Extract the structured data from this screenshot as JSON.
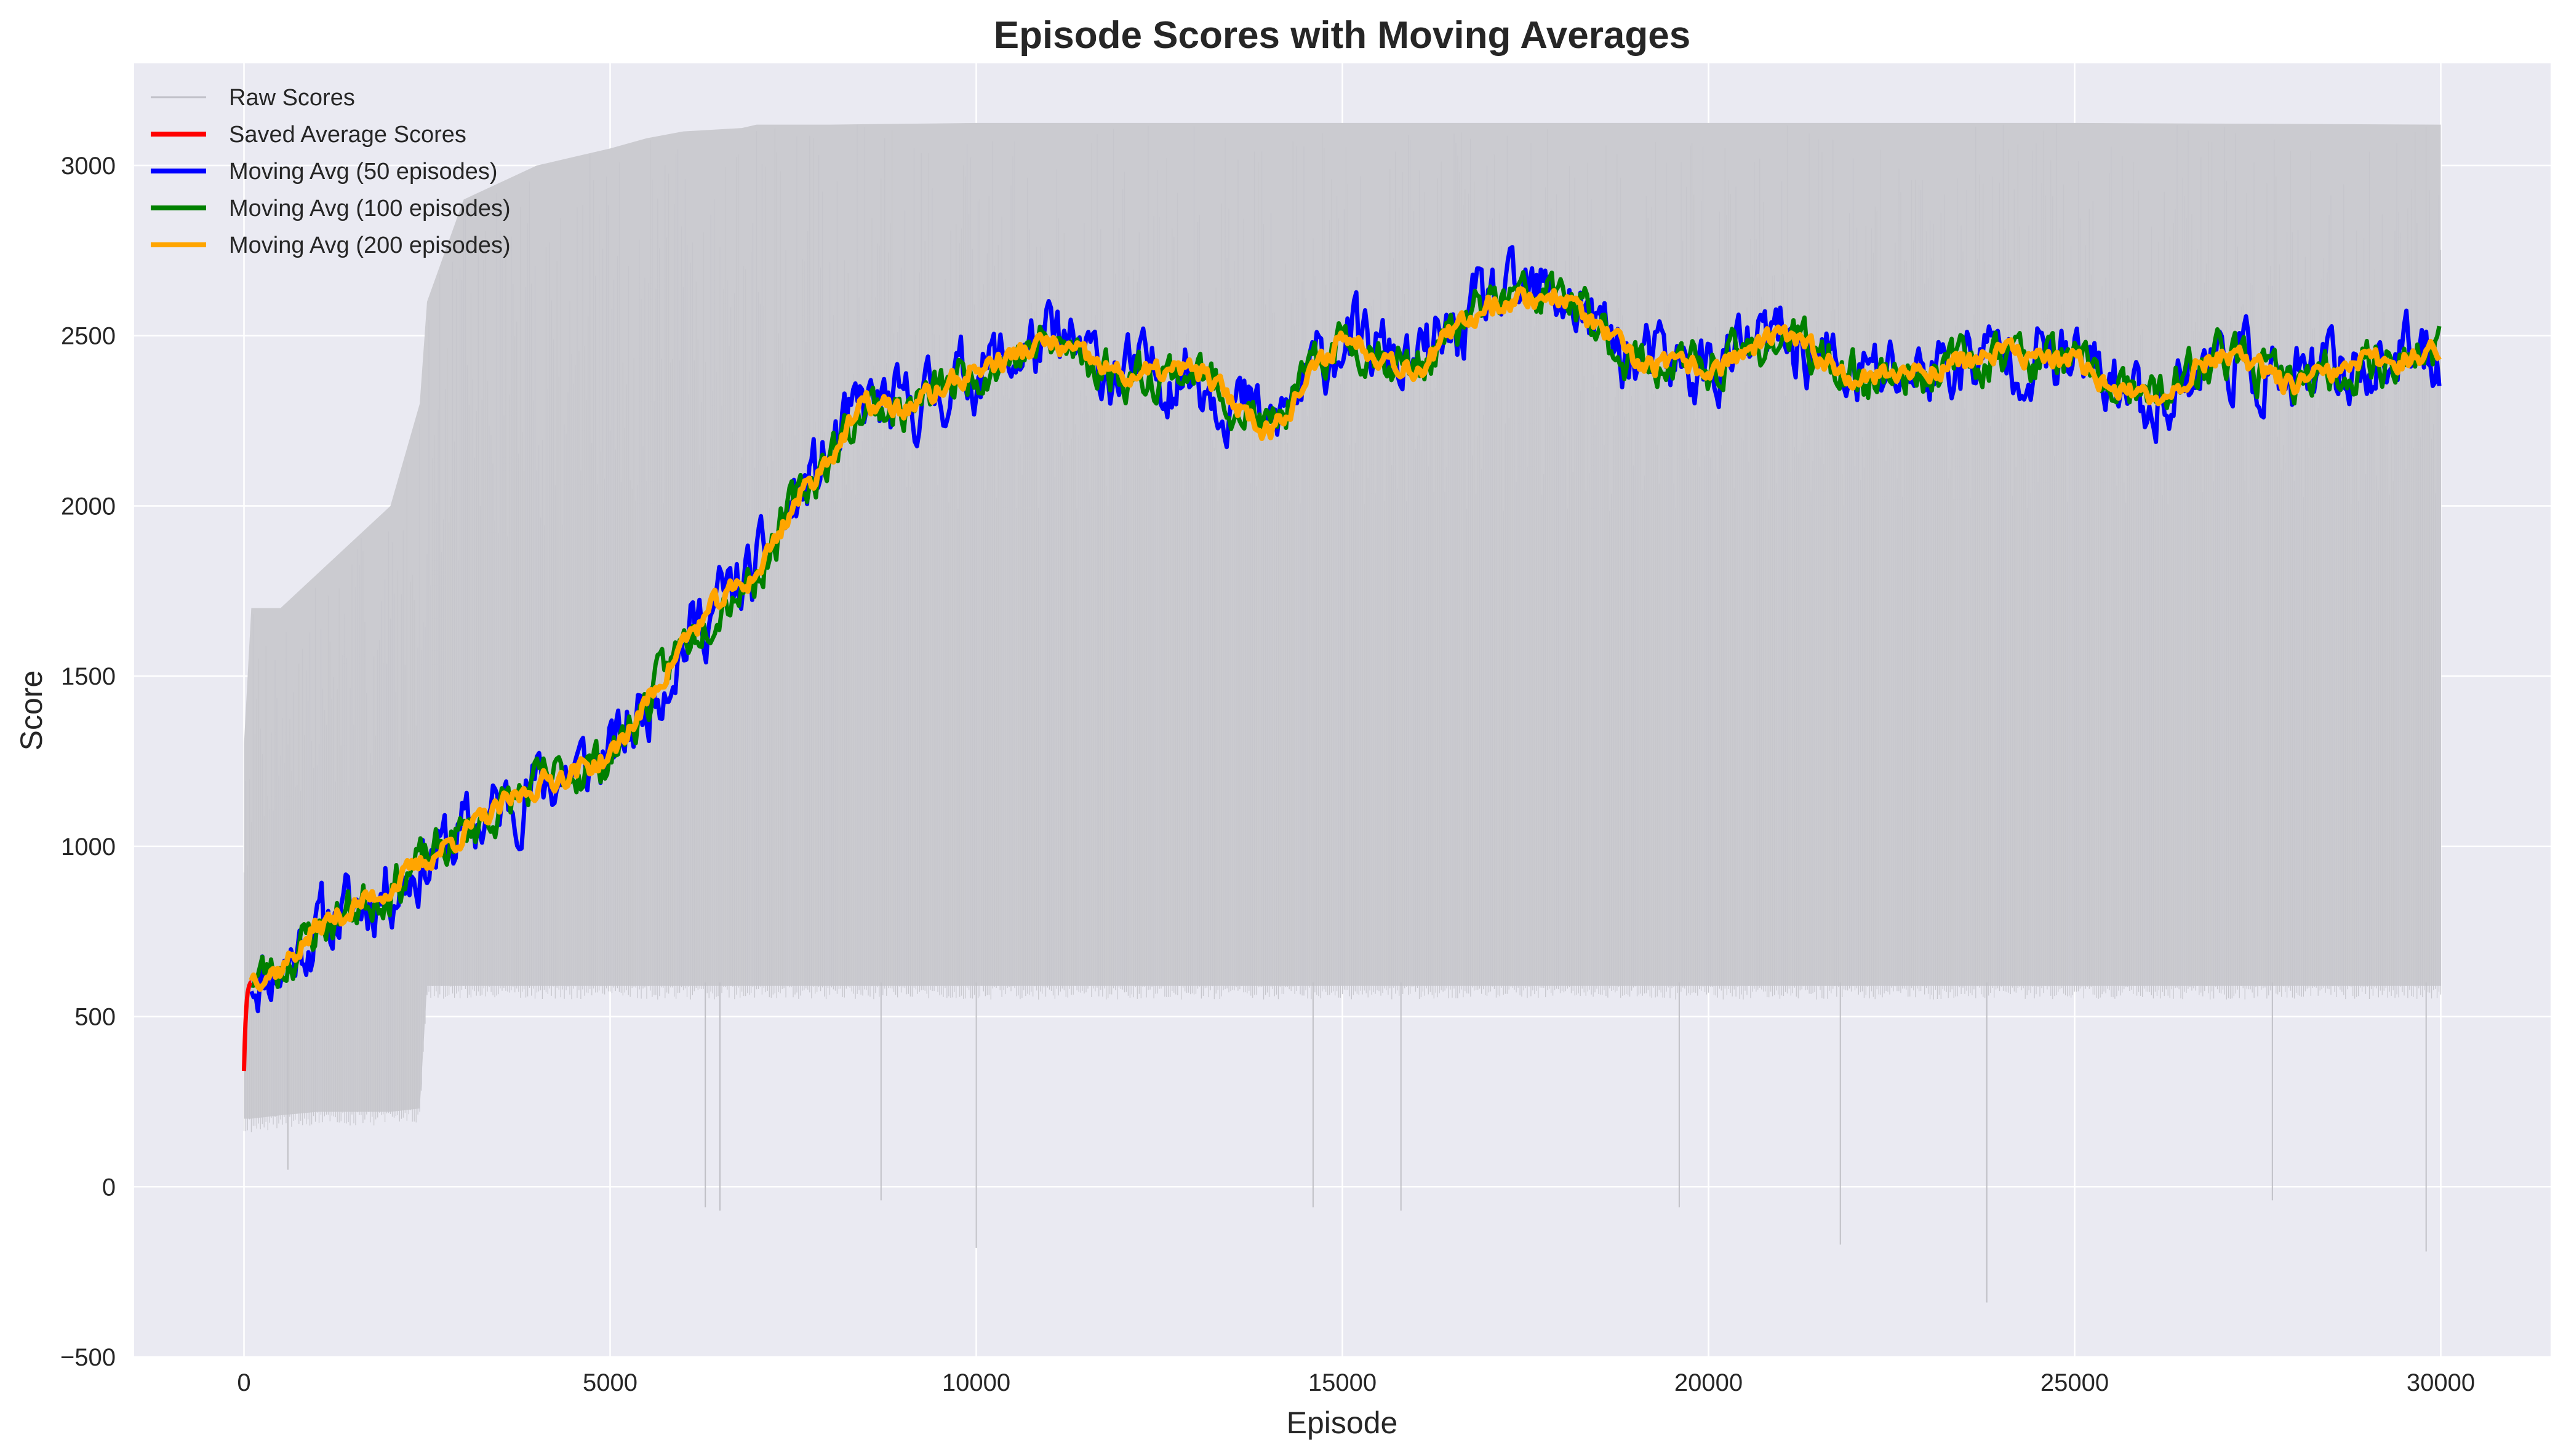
{
  "chart_data": {
    "type": "line",
    "title": "Episode Scores with Moving Averages",
    "xlabel": "Episode",
    "ylabel": "Score",
    "xlim": [
      -1500,
      31500
    ],
    "ylim": [
      -500,
      3300
    ],
    "xticks": [
      0,
      5000,
      10000,
      15000,
      20000,
      25000,
      30000
    ],
    "yticks": [
      -500,
      0,
      500,
      1000,
      1500,
      2000,
      2500,
      3000
    ],
    "xtick_labels": [
      "0",
      "5000",
      "10000",
      "15000",
      "20000",
      "25000",
      "30000"
    ],
    "ytick_labels": [
      "−500",
      "0",
      "500",
      "1000",
      "1500",
      "2000",
      "2500",
      "3000"
    ],
    "grid": true,
    "legend_position": "top-left",
    "colors": {
      "background": "#eaeaf2",
      "grid": "#ffffff",
      "raw": "#c0c0c8",
      "saved": "#ff0000",
      "ma50": "#0000ff",
      "ma100": "#008000",
      "ma200": "#ffa500"
    },
    "raw_scores": {
      "name": "Raw Scores",
      "x_range": [
        0,
        30000
      ],
      "band": {
        "x": [
          0,
          100,
          500,
          1000,
          2000,
          2400,
          2500,
          3000,
          4000,
          5000,
          5500,
          6000,
          6800,
          7000,
          8000,
          10000,
          15000,
          20000,
          25000,
          30000
        ],
        "high": [
          1300,
          1700,
          1700,
          1800,
          2000,
          2300,
          2600,
          2900,
          3000,
          3050,
          3080,
          3100,
          3110,
          3120,
          3120,
          3125,
          3125,
          3125,
          3125,
          3120
        ],
        "low": [
          200,
          200,
          210,
          220,
          220,
          230,
          590,
          590,
          590,
          590,
          590,
          590,
          590,
          590,
          590,
          590,
          590,
          590,
          590,
          590
        ]
      },
      "dips": [
        {
          "x": 600,
          "y": 50
        },
        {
          "x": 6300,
          "y": -60
        },
        {
          "x": 6500,
          "y": -70
        },
        {
          "x": 8700,
          "y": -40
        },
        {
          "x": 10000,
          "y": -180
        },
        {
          "x": 14600,
          "y": -60
        },
        {
          "x": 15800,
          "y": -70
        },
        {
          "x": 19600,
          "y": -60
        },
        {
          "x": 21800,
          "y": -170
        },
        {
          "x": 23800,
          "y": -340
        },
        {
          "x": 27700,
          "y": -40
        },
        {
          "x": 29800,
          "y": -190
        }
      ]
    },
    "series": [
      {
        "name": "Saved Average Scores",
        "color": "#ff0000",
        "x": [
          0,
          10,
          20,
          30,
          40,
          50,
          60,
          70,
          80,
          90,
          100
        ],
        "y": [
          340,
          420,
          480,
          520,
          550,
          570,
          580,
          590,
          595,
          600,
          600
        ]
      },
      {
        "name": "Moving Avg (50 episodes)",
        "color": "#0000ff",
        "x": [
          100,
          500,
          1000,
          2000,
          3000,
          4000,
          5000,
          5500,
          6000,
          6500,
          7000,
          7500,
          8000,
          8500,
          9000,
          10000,
          11000,
          12000,
          13000,
          14000,
          15000,
          16000,
          17000,
          18000,
          19000,
          20000,
          21000,
          22000,
          23000,
          24000,
          25000,
          26000,
          27000,
          28000,
          29000,
          30000
        ],
        "y": [
          620,
          640,
          760,
          880,
          1040,
          1180,
          1260,
          1420,
          1600,
          1720,
          1800,
          2000,
          2150,
          2300,
          2280,
          2400,
          2480,
          2380,
          2400,
          2220,
          2500,
          2400,
          2600,
          2620,
          2420,
          2400,
          2500,
          2380,
          2400,
          2450,
          2420,
          2300,
          2450,
          2350,
          2420,
          2450
        ],
        "amp": 110,
        "seed": 11
      },
      {
        "name": "Moving Avg (100 episodes)",
        "color": "#008000",
        "x": [
          100,
          500,
          1000,
          2000,
          3000,
          4000,
          5000,
          5500,
          6000,
          6500,
          7000,
          7500,
          8000,
          8500,
          9000,
          10000,
          11000,
          12000,
          13000,
          14000,
          15000,
          16000,
          17000,
          18000,
          19000,
          20000,
          21000,
          22000,
          23000,
          24000,
          25000,
          26000,
          27000,
          28000,
          29000,
          30000
        ],
        "y": [
          620,
          640,
          760,
          880,
          1040,
          1180,
          1260,
          1420,
          1600,
          1720,
          1800,
          2000,
          2150,
          2300,
          2280,
          2400,
          2480,
          2380,
          2400,
          2220,
          2500,
          2400,
          2600,
          2620,
          2420,
          2400,
          2500,
          2380,
          2400,
          2450,
          2420,
          2300,
          2450,
          2350,
          2420,
          2450
        ],
        "amp": 70,
        "seed": 23
      },
      {
        "name": "Moving Avg (200 episodes)",
        "color": "#ffa500",
        "x": [
          100,
          500,
          1000,
          2000,
          3000,
          4000,
          5000,
          5500,
          6000,
          6500,
          7000,
          7500,
          8000,
          8500,
          9000,
          10000,
          11000,
          12000,
          13000,
          14000,
          15000,
          16000,
          17000,
          18000,
          19000,
          20000,
          21000,
          22000,
          23000,
          24000,
          25000,
          26000,
          27000,
          28000,
          29000,
          30000
        ],
        "y": [
          620,
          640,
          760,
          880,
          1040,
          1180,
          1260,
          1420,
          1600,
          1720,
          1800,
          2000,
          2150,
          2300,
          2280,
          2400,
          2480,
          2380,
          2400,
          2220,
          2500,
          2400,
          2600,
          2620,
          2420,
          2400,
          2500,
          2380,
          2400,
          2450,
          2420,
          2300,
          2450,
          2350,
          2420,
          2450
        ],
        "amp": 35,
        "seed": 37
      }
    ]
  }
}
